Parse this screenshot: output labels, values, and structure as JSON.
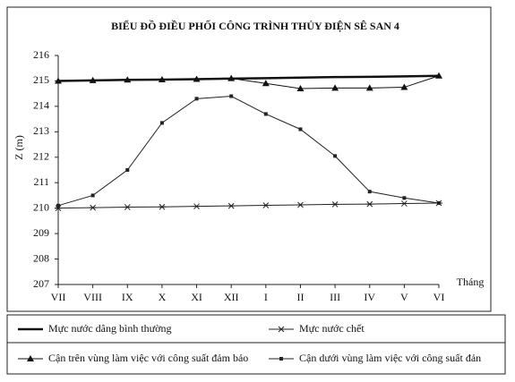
{
  "chart_data": {
    "type": "line",
    "title": "BIỂU ĐỒ ĐIỀU PHỐI CÔNG TRÌNH THỦY ĐIỆN SÊ SAN 4",
    "y_label": "Z (m)",
    "x_label": "Tháng",
    "categories": [
      "VII",
      "VIII",
      "IX",
      "X",
      "XI",
      "XII",
      "I",
      "II",
      "III",
      "IV",
      "V",
      "VI"
    ],
    "ylim": [
      207,
      216
    ],
    "yticks": [
      207,
      208,
      209,
      210,
      211,
      212,
      213,
      214,
      215,
      216
    ],
    "grid": false,
    "series": [
      {
        "name": "Mực nước dâng bình thường",
        "color": "#111111",
        "marker": "none",
        "width": 2.5,
        "values": [
          215.0,
          215.02,
          215.04,
          215.05,
          215.07,
          215.09,
          215.11,
          215.13,
          215.15,
          215.16,
          215.18,
          215.2
        ]
      },
      {
        "name": "Mực nước chết",
        "color": "#222222",
        "marker": "star",
        "width": 1,
        "values": [
          210.0,
          210.02,
          210.04,
          210.05,
          210.07,
          210.09,
          210.11,
          210.13,
          210.15,
          210.16,
          210.18,
          210.2
        ]
      },
      {
        "name": "Cận trên vùng làm việc với công suất đảm bảo",
        "color": "#111111",
        "marker": "triangle",
        "width": 1,
        "values": [
          215.0,
          215.02,
          215.04,
          215.05,
          215.07,
          215.1,
          214.9,
          214.7,
          214.72,
          214.72,
          214.75,
          215.2
        ]
      },
      {
        "name": "Cận dưới vùng làm việc với công suất đản",
        "color": "#222222",
        "marker": "square",
        "width": 1,
        "values": [
          210.1,
          210.5,
          211.5,
          213.35,
          214.3,
          214.4,
          213.7,
          213.1,
          212.05,
          210.65,
          210.4,
          210.2
        ]
      }
    ]
  }
}
